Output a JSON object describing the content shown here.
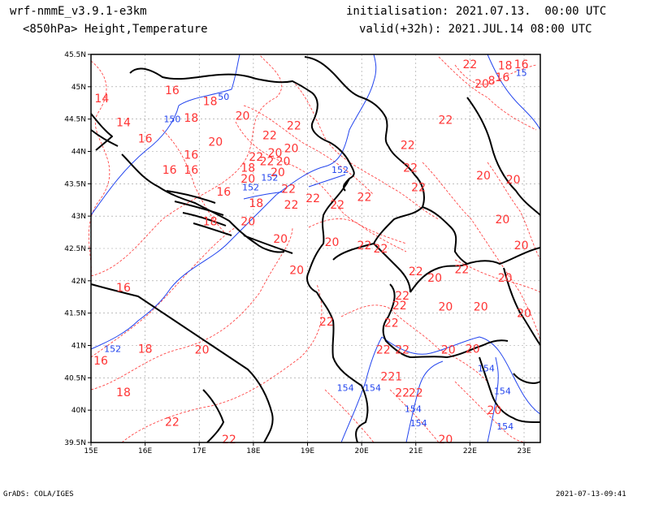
{
  "header": {
    "model": "wrf-nmmE_v3.9.1-e3km",
    "field": "<850hPa> Height,Temperature",
    "init": "initialisation: 2021.07.13.  00:00 UTC",
    "valid": "valid(+32h): 2021.JUL.14 08:00 UTC"
  },
  "footer": {
    "left": "GrADS: COLA/IGES",
    "right": "2021-07-13-09:41"
  },
  "colors": {
    "temperature": "#ff3333",
    "height": "#2244ee",
    "coast": "#000000",
    "grid": "#999999"
  },
  "axes": {
    "lon_labels": [
      "15E",
      "16E",
      "17E",
      "18E",
      "19E",
      "20E",
      "21E",
      "22E",
      "23E"
    ],
    "lat_labels": [
      "39.5N",
      "40N",
      "40.5N",
      "41N",
      "41.5N",
      "42N",
      "42.5N",
      "43N",
      "43.5N",
      "44N",
      "44.5N",
      "45N",
      "45.5N"
    ],
    "lon_range": [
      15,
      23.3
    ],
    "lat_range": [
      39.5,
      45.5
    ]
  },
  "temp_labels": [
    {
      "t": "22",
      "lon": 22.0,
      "lat": 45.35
    },
    {
      "t": "18",
      "lon": 22.65,
      "lat": 45.33
    },
    {
      "t": "16",
      "lon": 22.95,
      "lat": 45.35
    },
    {
      "t": "20",
      "lon": 22.22,
      "lat": 45.05
    },
    {
      "t": "8",
      "lon": 22.4,
      "lat": 45.1
    },
    {
      "t": "16",
      "lon": 22.6,
      "lat": 45.15
    },
    {
      "t": "14",
      "lon": 15.2,
      "lat": 44.82
    },
    {
      "t": "16",
      "lon": 16.5,
      "lat": 44.95
    },
    {
      "t": "18",
      "lon": 17.2,
      "lat": 44.78
    },
    {
      "t": "18",
      "lon": 16.85,
      "lat": 44.52
    },
    {
      "t": "14",
      "lon": 15.6,
      "lat": 44.45
    },
    {
      "t": "16",
      "lon": 16.0,
      "lat": 44.2
    },
    {
      "t": "20",
      "lon": 17.8,
      "lat": 44.55
    },
    {
      "t": "22",
      "lon": 18.75,
      "lat": 44.4
    },
    {
      "t": "22",
      "lon": 18.3,
      "lat": 44.25
    },
    {
      "t": "20",
      "lon": 18.7,
      "lat": 44.05
    },
    {
      "t": "22",
      "lon": 18.05,
      "lat": 43.92
    },
    {
      "t": "20",
      "lon": 18.4,
      "lat": 43.98
    },
    {
      "t": "22",
      "lon": 18.25,
      "lat": 43.85
    },
    {
      "t": "20",
      "lon": 18.55,
      "lat": 43.85
    },
    {
      "t": "16",
      "lon": 16.85,
      "lat": 43.95
    },
    {
      "t": "16",
      "lon": 16.45,
      "lat": 43.72
    },
    {
      "t": "16",
      "lon": 16.85,
      "lat": 43.72
    },
    {
      "t": "18",
      "lon": 17.9,
      "lat": 43.75
    },
    {
      "t": "20",
      "lon": 17.9,
      "lat": 43.58
    },
    {
      "t": "20",
      "lon": 18.45,
      "lat": 43.68
    },
    {
      "t": "16",
      "lon": 17.45,
      "lat": 43.38
    },
    {
      "t": "18",
      "lon": 18.05,
      "lat": 43.2
    },
    {
      "t": "22",
      "lon": 18.65,
      "lat": 43.42
    },
    {
      "t": "22",
      "lon": 19.1,
      "lat": 43.28
    },
    {
      "t": "22",
      "lon": 18.7,
      "lat": 43.18
    },
    {
      "t": "22",
      "lon": 19.55,
      "lat": 43.18
    },
    {
      "t": "22",
      "lon": 20.85,
      "lat": 44.1
    },
    {
      "t": "22",
      "lon": 20.9,
      "lat": 43.75
    },
    {
      "t": "22",
      "lon": 21.05,
      "lat": 43.45
    },
    {
      "t": "22",
      "lon": 20.05,
      "lat": 43.3
    },
    {
      "t": "22",
      "lon": 21.55,
      "lat": 44.49
    },
    {
      "t": "20",
      "lon": 22.25,
      "lat": 43.63
    },
    {
      "t": "20",
      "lon": 22.8,
      "lat": 43.57
    },
    {
      "t": "18",
      "lon": 17.2,
      "lat": 42.92
    },
    {
      "t": "20",
      "lon": 17.9,
      "lat": 42.92
    },
    {
      "t": "20",
      "lon": 18.5,
      "lat": 42.65
    },
    {
      "t": "20",
      "lon": 19.45,
      "lat": 42.6
    },
    {
      "t": "22",
      "lon": 20.05,
      "lat": 42.55
    },
    {
      "t": "22",
      "lon": 20.35,
      "lat": 42.5
    },
    {
      "t": "20",
      "lon": 22.6,
      "lat": 42.95
    },
    {
      "t": "20",
      "lon": 22.95,
      "lat": 42.55
    },
    {
      "t": "22",
      "lon": 21.85,
      "lat": 42.18
    },
    {
      "t": "20",
      "lon": 18.8,
      "lat": 42.17
    },
    {
      "t": "22",
      "lon": 21.0,
      "lat": 42.15
    },
    {
      "t": "20",
      "lon": 21.35,
      "lat": 42.05
    },
    {
      "t": "20",
      "lon": 22.65,
      "lat": 42.05
    },
    {
      "t": "22",
      "lon": 20.75,
      "lat": 41.77
    },
    {
      "t": "22",
      "lon": 20.7,
      "lat": 41.62
    },
    {
      "t": "20",
      "lon": 21.55,
      "lat": 41.6
    },
    {
      "t": "20",
      "lon": 22.2,
      "lat": 41.6
    },
    {
      "t": "20",
      "lon": 23.0,
      "lat": 41.5
    },
    {
      "t": "16",
      "lon": 15.6,
      "lat": 41.9
    },
    {
      "t": "22",
      "lon": 19.35,
      "lat": 41.37
    },
    {
      "t": "22",
      "lon": 20.55,
      "lat": 41.35
    },
    {
      "t": "18",
      "lon": 16.0,
      "lat": 40.95
    },
    {
      "t": "20",
      "lon": 17.05,
      "lat": 40.94
    },
    {
      "t": "22",
      "lon": 20.4,
      "lat": 40.94
    },
    {
      "t": "22",
      "lon": 20.75,
      "lat": 40.94
    },
    {
      "t": "20",
      "lon": 21.6,
      "lat": 40.94
    },
    {
      "t": "16",
      "lon": 15.18,
      "lat": 40.77
    },
    {
      "t": "221",
      "lon": 20.55,
      "lat": 40.52
    },
    {
      "t": "18",
      "lon": 15.6,
      "lat": 40.28
    },
    {
      "t": "22",
      "lon": 20.75,
      "lat": 40.27
    },
    {
      "t": "22",
      "lon": 21.0,
      "lat": 40.27
    },
    {
      "t": "20",
      "lon": 22.45,
      "lat": 40.0
    },
    {
      "t": "22",
      "lon": 16.5,
      "lat": 39.82
    },
    {
      "t": "22",
      "lon": 17.55,
      "lat": 39.55
    },
    {
      "t": "20",
      "lon": 21.55,
      "lat": 39.55
    },
    {
      "t": "20",
      "lon": 22.05,
      "lat": 40.95
    },
    {
      "t": "20",
      "lon": 17.3,
      "lat": 44.15
    }
  ],
  "height_labels": [
    {
      "t": "150",
      "lon": 16.5,
      "lat": 44.5
    },
    {
      "t": "50",
      "lon": 17.45,
      "lat": 44.85
    },
    {
      "t": "152",
      "lon": 18.3,
      "lat": 43.6
    },
    {
      "t": "152",
      "lon": 17.95,
      "lat": 43.45
    },
    {
      "t": "152",
      "lon": 19.6,
      "lat": 43.72
    },
    {
      "t": "152",
      "lon": 15.4,
      "lat": 40.95
    },
    {
      "t": "154",
      "lon": 19.7,
      "lat": 40.35
    },
    {
      "t": "154",
      "lon": 20.2,
      "lat": 40.35
    },
    {
      "t": "154",
      "lon": 22.3,
      "lat": 40.65
    },
    {
      "t": "154",
      "lon": 22.6,
      "lat": 40.3
    },
    {
      "t": "154",
      "lon": 20.95,
      "lat": 40.02
    },
    {
      "t": "154",
      "lon": 21.05,
      "lat": 39.8
    },
    {
      "t": "154",
      "lon": 22.65,
      "lat": 39.75
    },
    {
      "t": "15",
      "lon": 22.95,
      "lat": 45.22
    }
  ]
}
